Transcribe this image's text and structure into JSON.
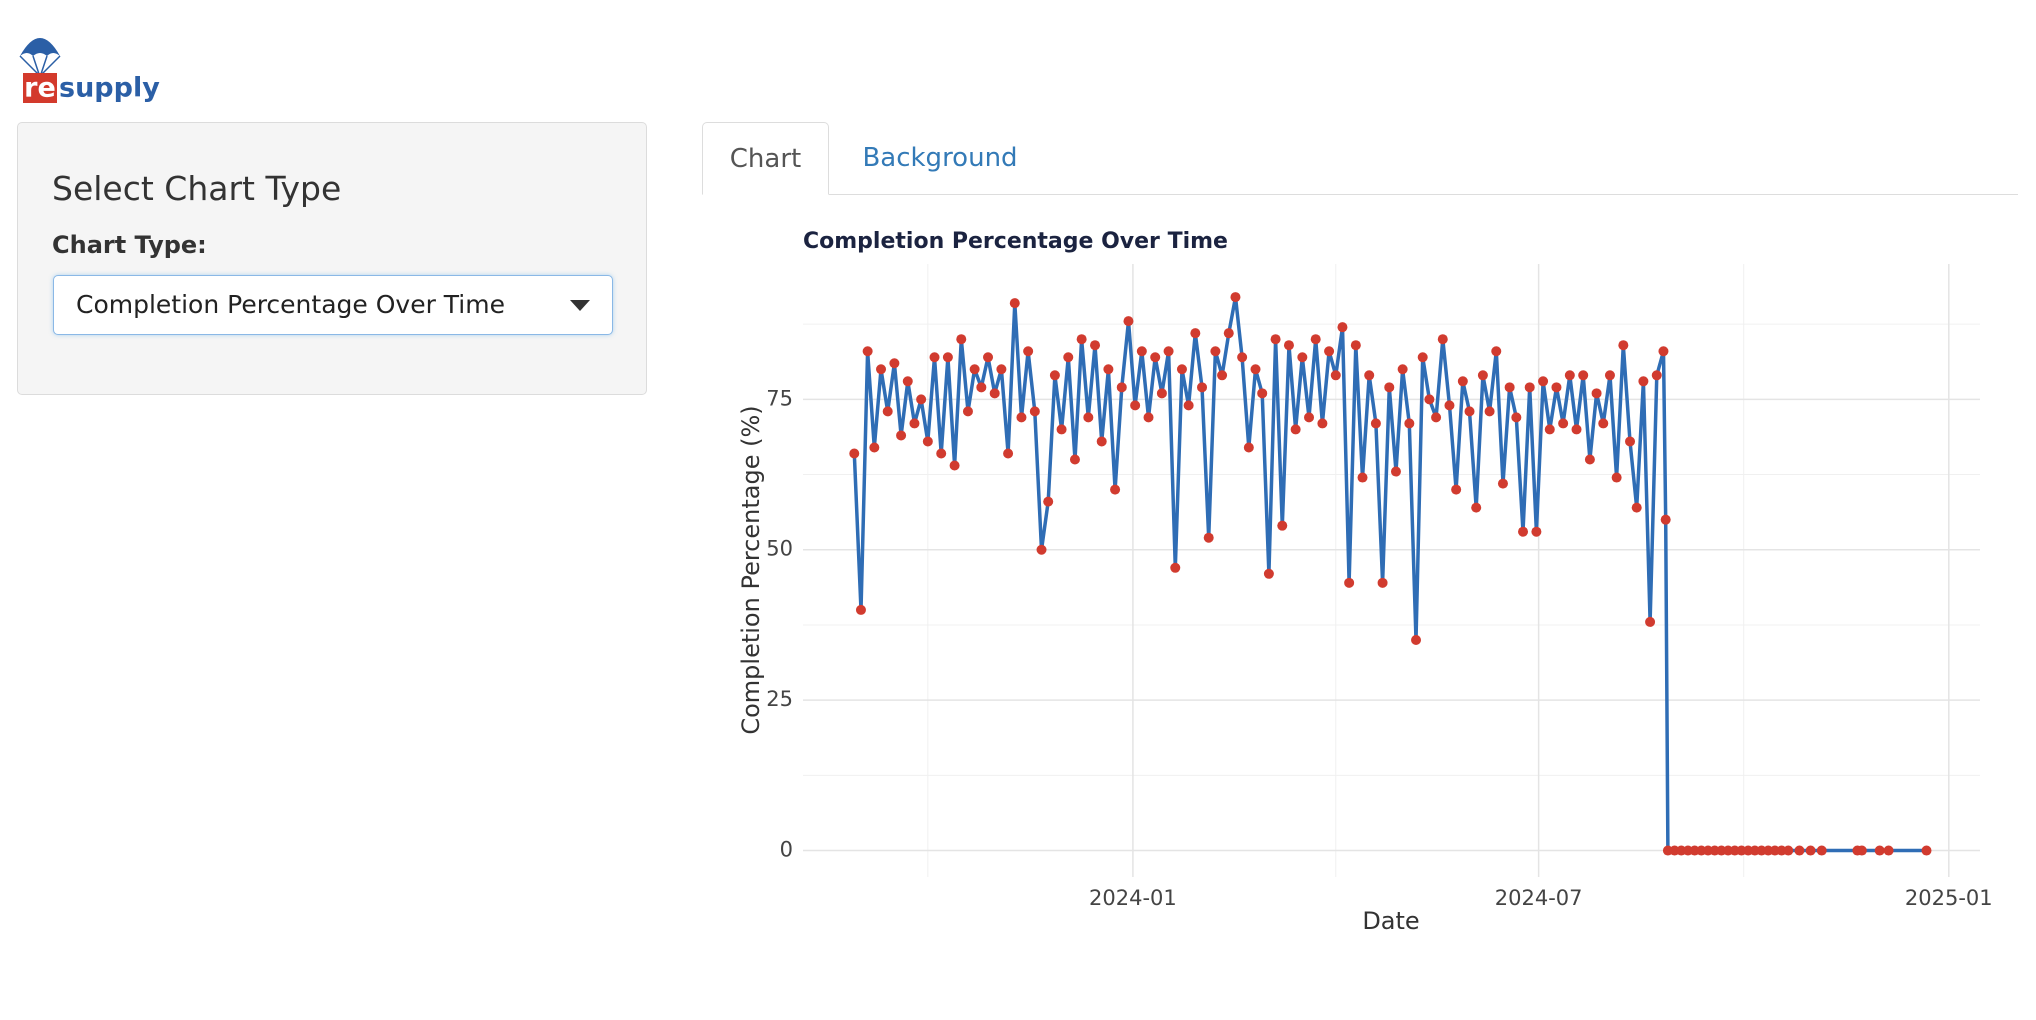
{
  "logo": {
    "re": "re",
    "supply": "supply"
  },
  "sidebar": {
    "heading": "Select Chart Type",
    "label": "Chart Type:",
    "selected": "Completion Percentage Over Time"
  },
  "tabs": [
    "Chart",
    "Background"
  ],
  "chart_data": {
    "type": "line",
    "title": "Completion Percentage Over Time",
    "x_label": "Date",
    "y_label": "Completion Percentage (%)",
    "color": "#2f6db5",
    "marker_color": "#d13b2f",
    "grid": true,
    "xlim": [
      "2023-08-06",
      "2025-01-15"
    ],
    "xticks": [
      "2024-01",
      "2024-07",
      "2025-01"
    ],
    "xminorticks": [
      "2023-10",
      "2024-04",
      "2024-10"
    ],
    "ylim": [
      -4.4,
      97.5
    ],
    "yticks": [
      0,
      25,
      50,
      75
    ],
    "yminorticks": [
      12.5,
      37.5,
      62.5,
      87.5
    ],
    "x": [
      "2023-08-29",
      "2023-09-01",
      "2023-09-04",
      "2023-09-07",
      "2023-09-10",
      "2023-09-13",
      "2023-09-16",
      "2023-09-19",
      "2023-09-22",
      "2023-09-25",
      "2023-09-28",
      "2023-10-01",
      "2023-10-04",
      "2023-10-07",
      "2023-10-10",
      "2023-10-13",
      "2023-10-16",
      "2023-10-19",
      "2023-10-22",
      "2023-10-25",
      "2023-10-28",
      "2023-10-31",
      "2023-11-03",
      "2023-11-06",
      "2023-11-09",
      "2023-11-12",
      "2023-11-15",
      "2023-11-18",
      "2023-11-21",
      "2023-11-24",
      "2023-11-27",
      "2023-11-30",
      "2023-12-03",
      "2023-12-06",
      "2023-12-09",
      "2023-12-12",
      "2023-12-15",
      "2023-12-18",
      "2023-12-21",
      "2023-12-24",
      "2023-12-27",
      "2023-12-30",
      "2024-01-02",
      "2024-01-05",
      "2024-01-08",
      "2024-01-11",
      "2024-01-14",
      "2024-01-17",
      "2024-01-20",
      "2024-01-23",
      "2024-01-26",
      "2024-01-29",
      "2024-02-01",
      "2024-02-04",
      "2024-02-07",
      "2024-02-10",
      "2024-02-13",
      "2024-02-16",
      "2024-02-19",
      "2024-02-22",
      "2024-02-25",
      "2024-02-28",
      "2024-03-02",
      "2024-03-05",
      "2024-03-08",
      "2024-03-11",
      "2024-03-14",
      "2024-03-17",
      "2024-03-20",
      "2024-03-23",
      "2024-03-26",
      "2024-03-29",
      "2024-04-01",
      "2024-04-04",
      "2024-04-07",
      "2024-04-10",
      "2024-04-13",
      "2024-04-16",
      "2024-04-19",
      "2024-04-22",
      "2024-04-25",
      "2024-04-28",
      "2024-05-01",
      "2024-05-04",
      "2024-05-07",
      "2024-05-10",
      "2024-05-13",
      "2024-05-16",
      "2024-05-19",
      "2024-05-22",
      "2024-05-25",
      "2024-05-28",
      "2024-05-31",
      "2024-06-03",
      "2024-06-06",
      "2024-06-09",
      "2024-06-12",
      "2024-06-15",
      "2024-06-18",
      "2024-06-21",
      "2024-06-24",
      "2024-06-27",
      "2024-06-30",
      "2024-07-03",
      "2024-07-06",
      "2024-07-09",
      "2024-07-12",
      "2024-07-15",
      "2024-07-18",
      "2024-07-21",
      "2024-07-24",
      "2024-07-27",
      "2024-07-30",
      "2024-08-02",
      "2024-08-05",
      "2024-08-08",
      "2024-08-11",
      "2024-08-14",
      "2024-08-17",
      "2024-08-20",
      "2024-08-23",
      "2024-08-26",
      "2024-08-27",
      "2024-08-28",
      "2024-08-31",
      "2024-09-03",
      "2024-09-06",
      "2024-09-09",
      "2024-09-12",
      "2024-09-15",
      "2024-09-18",
      "2024-09-21",
      "2024-09-24",
      "2024-09-27",
      "2024-09-30",
      "2024-10-03",
      "2024-10-06",
      "2024-10-09",
      "2024-10-12",
      "2024-10-15",
      "2024-10-18",
      "2024-10-21",
      "2024-10-26",
      "2024-10-31",
      "2024-11-05",
      "2024-11-21",
      "2024-11-23",
      "2024-12-01",
      "2024-12-05",
      "2024-12-22"
    ],
    "values": [
      66,
      40,
      83,
      67,
      80,
      73,
      81,
      69,
      78,
      71,
      75,
      68,
      82,
      66,
      82,
      64,
      85,
      73,
      80,
      77,
      82,
      76,
      80,
      66,
      91,
      72,
      83,
      73,
      50,
      58,
      79,
      70,
      82,
      65,
      85,
      72,
      84,
      68,
      80,
      60,
      77,
      88,
      74,
      83,
      72,
      82,
      76,
      83,
      47,
      80,
      74,
      86,
      77,
      52,
      83,
      79,
      86,
      92,
      82,
      67,
      80,
      76,
      46,
      85,
      54,
      84,
      70,
      82,
      72,
      85,
      71,
      83,
      79,
      87,
      44.5,
      84,
      62,
      79,
      71,
      44.5,
      77,
      63,
      80,
      71,
      35,
      82,
      75,
      72,
      85,
      74,
      60,
      78,
      73,
      57,
      79,
      73,
      83,
      61,
      77,
      72,
      53,
      77,
      53,
      78,
      70,
      77,
      71,
      79,
      70,
      79,
      65,
      76,
      71,
      79,
      62,
      84,
      68,
      57,
      78,
      38,
      79,
      83,
      55,
      0,
      0,
      0,
      0,
      0,
      0,
      0,
      0,
      0,
      0,
      0,
      0,
      0,
      0,
      0,
      0,
      0,
      0,
      0,
      0,
      0,
      0,
      0,
      0,
      0,
      0,
      0
    ]
  }
}
